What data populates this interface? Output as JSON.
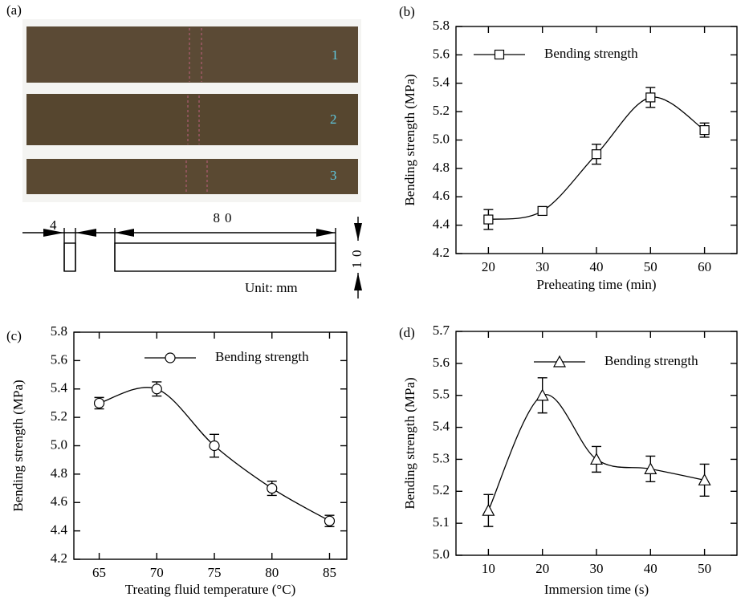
{
  "panel_a": {
    "label": "(a)",
    "specimens": [
      "1",
      "2",
      "3"
    ],
    "width": "4",
    "length": "80",
    "height": "10",
    "unit": "Unit: mm"
  },
  "chart_data": [
    {
      "type": "line",
      "panel": "(b)",
      "xlabel": "Preheating time (min)",
      "ylabel": "Bending strength (MPa)",
      "x": [
        20,
        30,
        40,
        50,
        60
      ],
      "xlim": [
        14,
        66
      ],
      "xticks": [
        20,
        30,
        40,
        50,
        60
      ],
      "ylim": [
        4.2,
        5.8
      ],
      "yticks": [
        4.2,
        4.4,
        4.6,
        4.8,
        {
          "value": 5,
          "label": "5.0"
        },
        5.2,
        5.4,
        5.6,
        5.8
      ],
      "series": [
        {
          "name": "Bending strength",
          "marker": "square",
          "color": "#000000",
          "values": [
            4.44,
            4.5,
            4.9,
            5.3,
            5.07
          ],
          "errors": [
            0.07,
            0.03,
            0.07,
            0.07,
            0.05
          ]
        }
      ]
    },
    {
      "type": "line",
      "panel": "(c)",
      "xlabel": "Treating fluid temperature (°C)",
      "ylabel": "Bending strength  (MPa)",
      "x": [
        65,
        70,
        75,
        80,
        85
      ],
      "xlim": [
        62.8,
        86.5
      ],
      "xticks": [
        65,
        70,
        75,
        80,
        85
      ],
      "ylim": [
        4.2,
        5.8
      ],
      "yticks": [
        4.2,
        4.4,
        4.6,
        4.8,
        {
          "value": 5,
          "label": "5.0"
        },
        5.2,
        5.4,
        5.6,
        5.8
      ],
      "series": [
        {
          "name": "Bending strength",
          "marker": "circle",
          "color": "#000000",
          "values": [
            5.3,
            5.4,
            5.0,
            4.7,
            4.47
          ],
          "errors": [
            0.04,
            0.05,
            0.08,
            0.05,
            0.04
          ]
        }
      ]
    },
    {
      "type": "line",
      "panel": "(d)",
      "xlabel": "Immersion time (s)",
      "ylabel": "Bending strength  (MPa)",
      "x": [
        10,
        20,
        30,
        40,
        50
      ],
      "xlim": [
        4,
        56
      ],
      "xticks": [
        10,
        20,
        30,
        40,
        50
      ],
      "ylim": [
        5.0,
        5.7
      ],
      "yticks": [
        {
          "value": 5,
          "label": "5.0"
        },
        5.1,
        5.2,
        5.3,
        5.4,
        5.5,
        5.6,
        5.7
      ],
      "series": [
        {
          "name": "Bending strength",
          "marker": "triangle",
          "color": "#000000",
          "values": [
            5.14,
            5.5,
            5.3,
            5.27,
            5.235
          ],
          "errors": [
            0.05,
            0.055,
            0.04,
            0.04,
            0.05
          ]
        }
      ]
    }
  ]
}
